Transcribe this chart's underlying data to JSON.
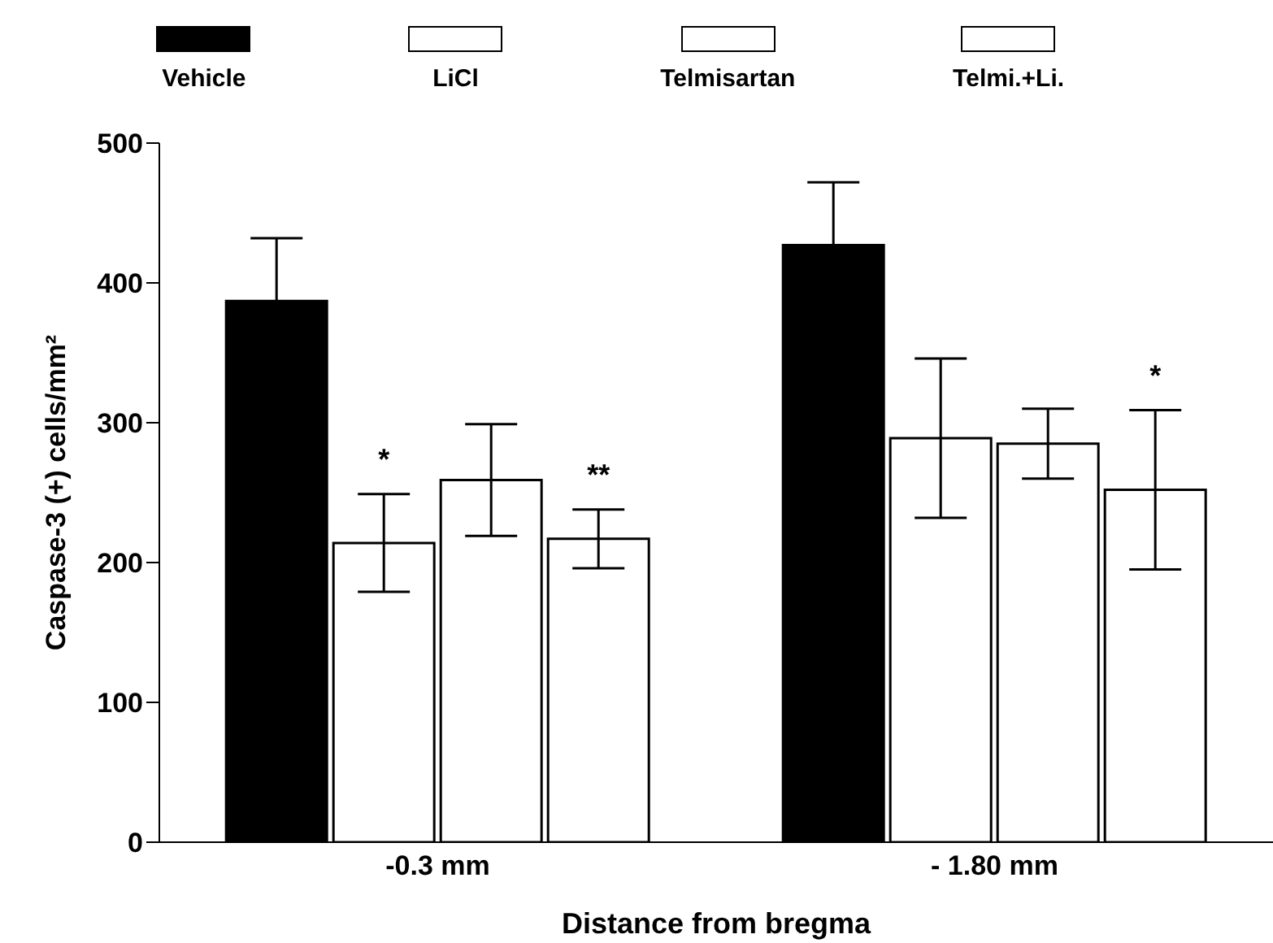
{
  "chart_data": {
    "type": "bar",
    "xlabel": "Distance from bregma",
    "ylabel": "Caspase-3 (+) cells/mm²",
    "categories": [
      "-0.3 mm",
      "- 1.80 mm"
    ],
    "series": [
      {
        "name": "Vehicle",
        "color": "#000000",
        "values": [
          387,
          427
        ],
        "errors": [
          45,
          45
        ]
      },
      {
        "name": "LiCl",
        "color": "#ffffff",
        "values": [
          214,
          289
        ],
        "errors": [
          35,
          57
        ]
      },
      {
        "name": "Telmisartan",
        "color": "#ffffff",
        "values": [
          259,
          285
        ],
        "errors": [
          40,
          25
        ]
      },
      {
        "name": "Telmi.+Li.",
        "color": "#ffffff",
        "values": [
          217,
          252
        ],
        "errors": [
          21,
          57
        ]
      }
    ],
    "annotations": [
      "*",
      "**",
      "*"
    ],
    "ylim": [
      0,
      500
    ],
    "yticks": [
      0,
      100,
      200,
      300,
      400,
      500
    ],
    "grid": false,
    "legend": "top"
  }
}
